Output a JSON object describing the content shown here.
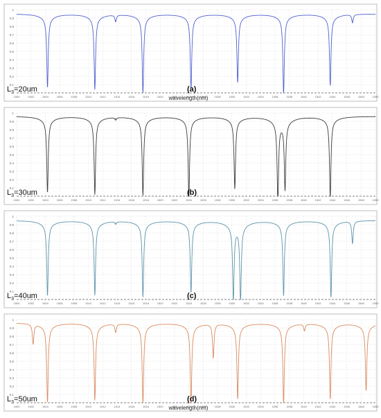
{
  "figure": {
    "shared_xlabel": "wavelength(nm)"
  },
  "chart_data": [
    {
      "type": "line",
      "panel_label": "(a)",
      "length_label_prefix": "L",
      "length_label_sub": "3",
      "length_label_value": "=20um",
      "xlabel": "wavelength(nm)",
      "color": "#4f5fd0",
      "xlim": [
        1500,
        1550
      ],
      "ylim": [
        0,
        1
      ],
      "x_ticks": [
        1500,
        1502,
        1504,
        1506,
        1508,
        1510,
        1512,
        1514,
        1516,
        1518,
        1520,
        1522,
        1524,
        1526,
        1528,
        1530,
        1532,
        1534,
        1536,
        1538,
        1540,
        1542,
        1544,
        1546,
        1548,
        1550
      ],
      "y_ticks": [
        0.1,
        0.2,
        0.3,
        0.4,
        0.5,
        0.6,
        0.7,
        0.8,
        0.9,
        1
      ],
      "baseline": 0.95,
      "dips": [
        {
          "x": 1504.3,
          "y": 0.12
        },
        {
          "x": 1510.9,
          "y": 0.1
        },
        {
          "x": 1513.8,
          "y": 0.87
        },
        {
          "x": 1517.6,
          "y": 0.06
        },
        {
          "x": 1524.3,
          "y": 0.11
        },
        {
          "x": 1530.8,
          "y": 0.18
        },
        {
          "x": 1537.2,
          "y": 0.05
        },
        {
          "x": 1543.7,
          "y": 0.14
        },
        {
          "x": 1546.8,
          "y": 0.85
        }
      ],
      "grid": true
    },
    {
      "type": "line",
      "panel_label": "(b)",
      "length_label_prefix": "L",
      "length_label_sub": "3",
      "length_label_value": "=30um",
      "xlabel": "",
      "color": "#3a3a3a",
      "xlim": [
        1500,
        1550
      ],
      "ylim": [
        0,
        1
      ],
      "x_ticks": [
        1500,
        1502,
        1504,
        1506,
        1508,
        1510,
        1512,
        1514,
        1516,
        1518,
        1520,
        1522,
        1524,
        1526,
        1528,
        1530,
        1532,
        1534,
        1536,
        1538,
        1540,
        1542,
        1544,
        1546,
        1548,
        1550
      ],
      "y_ticks": [
        0.1,
        0.2,
        0.3,
        0.4,
        0.5,
        0.6,
        0.7,
        0.8,
        0.9,
        1
      ],
      "baseline": 0.96,
      "dips": [
        {
          "x": 1504.3,
          "y": 0.1
        },
        {
          "x": 1510.9,
          "y": 0.08
        },
        {
          "x": 1513.8,
          "y": 0.93
        },
        {
          "x": 1517.6,
          "y": 0.07
        },
        {
          "x": 1524.0,
          "y": 0.05
        },
        {
          "x": 1530.4,
          "y": 0.15
        },
        {
          "x": 1536.4,
          "y": 0.03
        },
        {
          "x": 1537.4,
          "y": 0.17
        },
        {
          "x": 1543.7,
          "y": 0.04
        }
      ],
      "grid": true
    },
    {
      "type": "line",
      "panel_label": "(c)",
      "length_label_prefix": "L",
      "length_label_sub": "3",
      "length_label_value": "=40um",
      "xlabel": "",
      "color": "#5a93a8",
      "xlim": [
        1500,
        1550
      ],
      "ylim": [
        0,
        1
      ],
      "x_ticks": [
        1500,
        1502,
        1504,
        1506,
        1508,
        1510,
        1512,
        1514,
        1516,
        1518,
        1520,
        1522,
        1524,
        1526,
        1528,
        1530,
        1532,
        1534,
        1536,
        1538,
        1540,
        1542,
        1544,
        1546,
        1548,
        1550
      ],
      "y_ticks": [
        0.1,
        0.2,
        0.3,
        0.4,
        0.5,
        0.6,
        0.7,
        0.8,
        0.9,
        1
      ],
      "baseline": 0.95,
      "dips": [
        {
          "x": 1504.3,
          "y": 0.1
        },
        {
          "x": 1510.9,
          "y": 0.11
        },
        {
          "x": 1513.8,
          "y": 0.92
        },
        {
          "x": 1517.6,
          "y": 0.09
        },
        {
          "x": 1524.3,
          "y": 0.14
        },
        {
          "x": 1530.2,
          "y": 0.08
        },
        {
          "x": 1531.2,
          "y": 0.06
        },
        {
          "x": 1537.2,
          "y": 0.1
        },
        {
          "x": 1543.8,
          "y": 0.08
        },
        {
          "x": 1546.8,
          "y": 0.68
        }
      ],
      "grid": true
    },
    {
      "type": "line",
      "panel_label": "(d)",
      "length_label_prefix": "L",
      "length_label_sub": "3",
      "length_label_value": "=50um",
      "xlabel": "wavelength(nm)",
      "color": "#d98a5e",
      "xlim": [
        1500,
        1550
      ],
      "ylim": [
        0,
        1
      ],
      "x_ticks": [
        1500,
        1502,
        1504,
        1506,
        1508,
        1510,
        1512,
        1514,
        1516,
        1518,
        1520,
        1522,
        1524,
        1526,
        1528,
        1530,
        1532,
        1534,
        1536,
        1538,
        1540,
        1542,
        1544,
        1546,
        1548,
        1550
      ],
      "y_ticks": [
        0.1,
        0.2,
        0.3,
        0.4,
        0.5,
        0.6,
        0.7,
        0.8,
        0.9,
        1
      ],
      "baseline": 0.96,
      "dips": [
        {
          "x": 1502.3,
          "y": 0.72
        },
        {
          "x": 1504.3,
          "y": 0.06
        },
        {
          "x": 1510.9,
          "y": 0.09
        },
        {
          "x": 1513.8,
          "y": 0.86
        },
        {
          "x": 1517.6,
          "y": 0.05
        },
        {
          "x": 1524.3,
          "y": 0.05
        },
        {
          "x": 1527.4,
          "y": 0.55
        },
        {
          "x": 1530.8,
          "y": 0.1
        },
        {
          "x": 1537.2,
          "y": 0.05
        },
        {
          "x": 1540.1,
          "y": 0.88
        },
        {
          "x": 1543.7,
          "y": 0.1
        },
        {
          "x": 1548.7,
          "y": 0.2
        }
      ],
      "grid": true
    }
  ]
}
